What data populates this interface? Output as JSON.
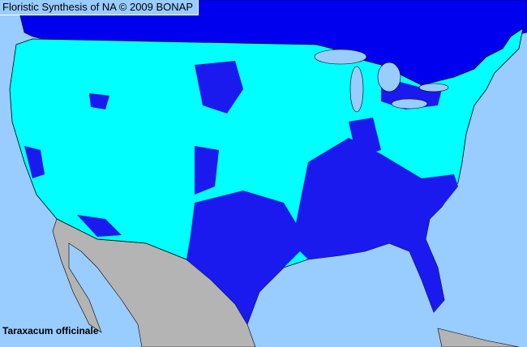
{
  "title": "Floristic Synthesis of NA © 2009 BONAP",
  "species": "Taraxacum officinale",
  "colors": {
    "ocean": "#99ccff",
    "canada": "#0000ee",
    "us_present": "#00ffff",
    "us_dense": "#1a1aee",
    "mexico": "#b4b4b4",
    "lakes": "#99ccff",
    "borders": "#000000"
  }
}
